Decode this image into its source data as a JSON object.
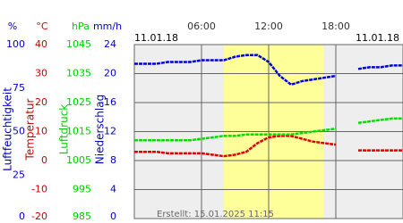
{
  "chart_data": {
    "type": "line",
    "start_date": "11.01.18",
    "end_date": "11.01.18",
    "footer": "Erstellt: 15.01.2025 11:15",
    "x": [
      0,
      1,
      2,
      3,
      4,
      5,
      6,
      7,
      8,
      9,
      10,
      11,
      12,
      13,
      14,
      15,
      16,
      17,
      18,
      19,
      20,
      21,
      22,
      23,
      24
    ],
    "xlim": [
      0,
      24
    ],
    "xticks": [
      {
        "value": 6,
        "label": "06:00"
      },
      {
        "value": 12,
        "label": "12:00"
      },
      {
        "value": 18,
        "label": "18:00"
      }
    ],
    "daylight": [
      8,
      16.9
    ],
    "grid": true,
    "axes": [
      {
        "unit": "%",
        "title": "Luftfeuchtigkeit",
        "color": "#0000cc",
        "lim": [
          0,
          100
        ],
        "ticks": [
          100,
          75,
          50,
          25,
          0
        ]
      },
      {
        "unit": "°C",
        "title": "Temperatur",
        "color": "#cc0000",
        "lim": [
          -20,
          40
        ],
        "ticks": [
          40,
          30,
          20,
          10,
          0,
          -10,
          -20
        ]
      },
      {
        "unit": "hPa",
        "title": "Luftdruck",
        "color": "#00cc00",
        "lim": [
          985,
          1045
        ],
        "ticks": [
          1045,
          1035,
          1025,
          1015,
          1005,
          995,
          985
        ]
      },
      {
        "unit": "mm/h",
        "title": "Niederschlag",
        "color": "#0000cc",
        "lim": [
          0,
          24
        ],
        "ticks": [
          24,
          20,
          16,
          12,
          8,
          4,
          0
        ]
      }
    ],
    "series": [
      {
        "axis": 0,
        "color": "#0000dd",
        "values": [
          89,
          89,
          89,
          90,
          90,
          90,
          91,
          91,
          91,
          93,
          94,
          94,
          90,
          82,
          77,
          79,
          80,
          81,
          82,
          null,
          86,
          87,
          87,
          88,
          88
        ]
      },
      {
        "axis": 1,
        "color": "#dd0000",
        "values": [
          3,
          3,
          3,
          2.5,
          2.5,
          2.5,
          2.5,
          2,
          1.5,
          2,
          3,
          6,
          8,
          8.5,
          8.5,
          7.5,
          6.5,
          6,
          5.5,
          null,
          3.5,
          3.5,
          3.5,
          3.5,
          3.5
        ]
      },
      {
        "axis": 2,
        "color": "#00dd00",
        "values": [
          1012,
          1012,
          1012,
          1012,
          1012,
          1012,
          1012.5,
          1013,
          1013.5,
          1013.5,
          1014,
          1014,
          1014,
          1014,
          1014,
          1014.5,
          1015,
          1015.5,
          1016,
          null,
          1018,
          1018.5,
          1019,
          1019.5,
          1019.5
        ]
      }
    ]
  }
}
